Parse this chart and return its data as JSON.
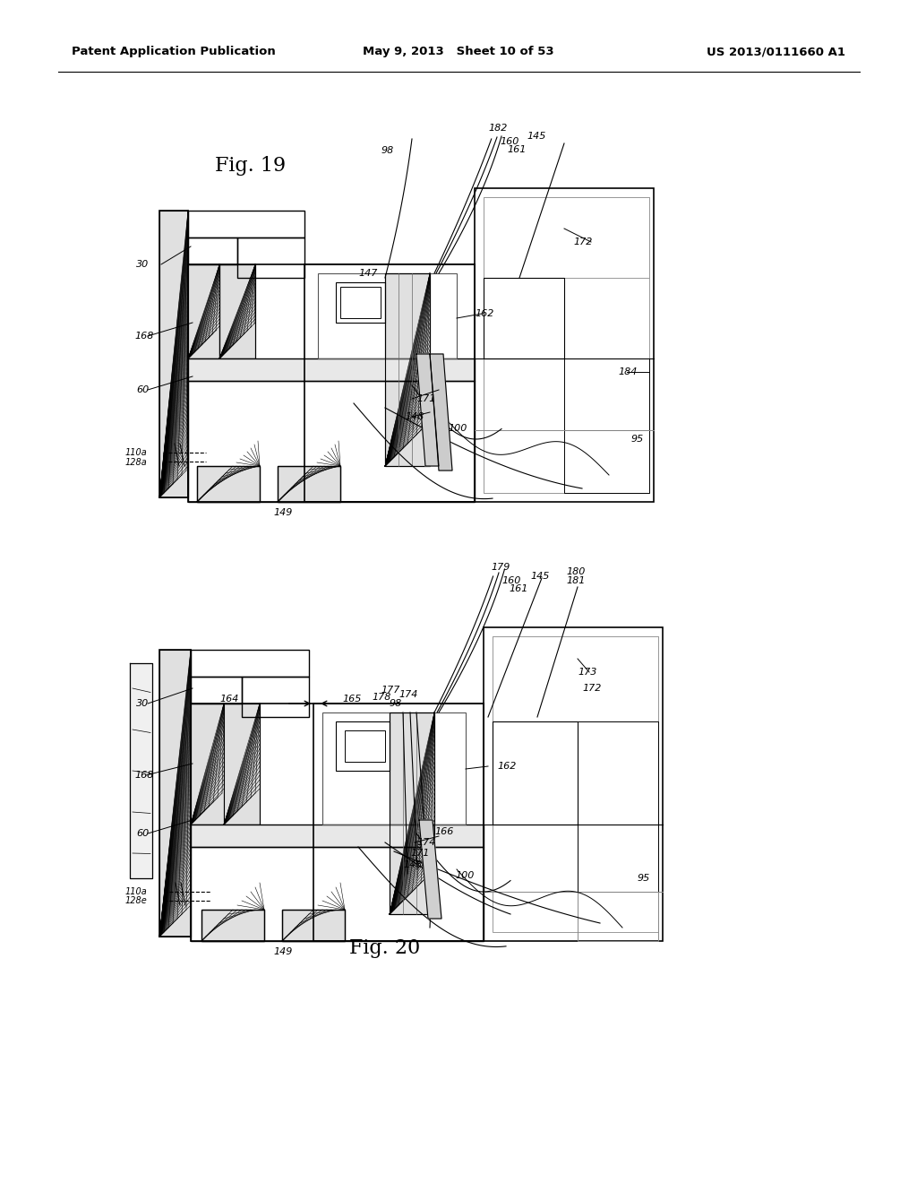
{
  "background": "#ffffff",
  "header_left": "Patent Application Publication",
  "header_center": "May 9, 2013   Sheet 10 of 53",
  "header_right": "US 2013/0111660 A1",
  "fig19_label": "Fig. 19",
  "fig20_label": "Fig. 20"
}
